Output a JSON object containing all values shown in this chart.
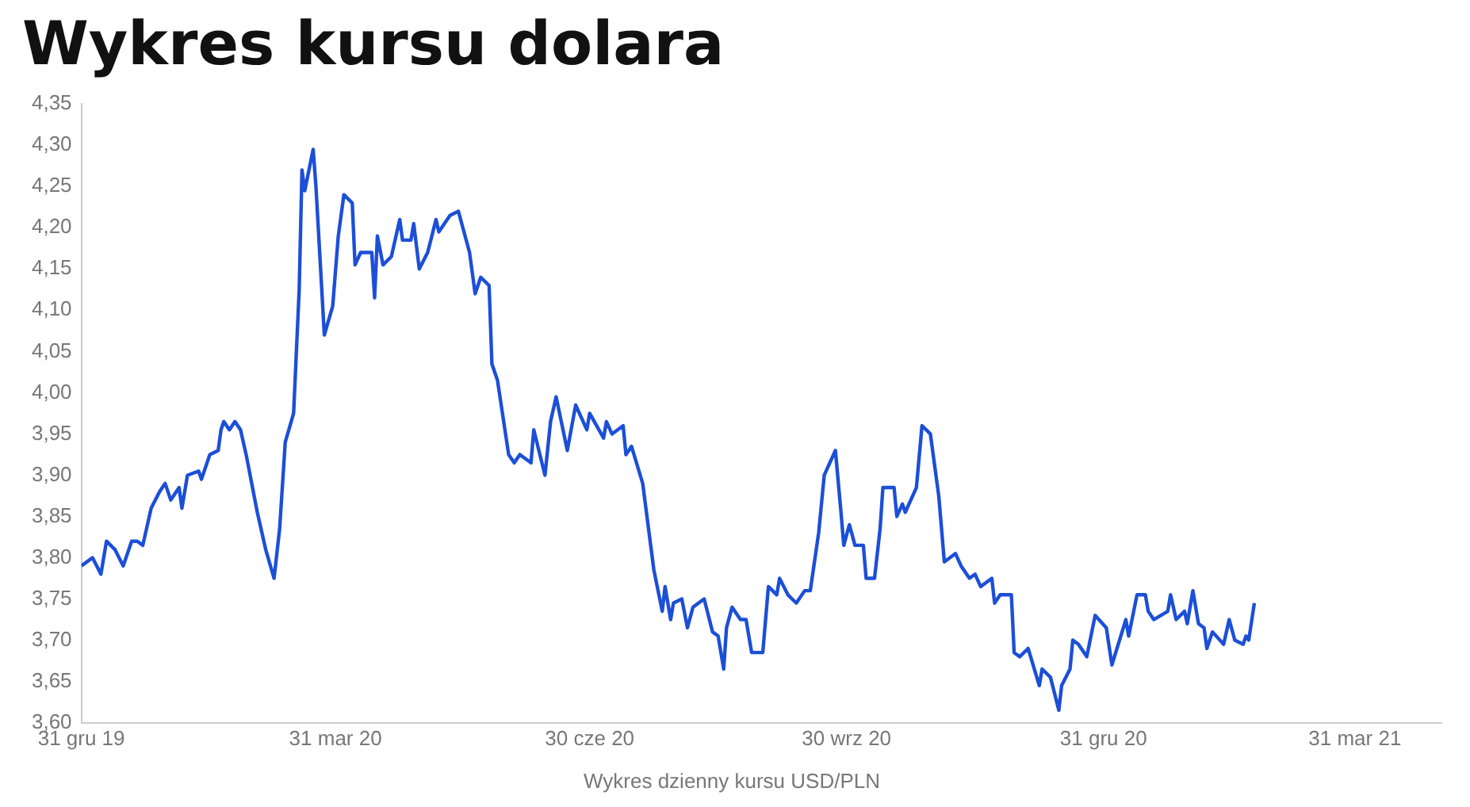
{
  "chart_data": {
    "type": "line",
    "title": "Wykres kursu dolara",
    "annotations": [
      "Wykres dzienny kursu USD/PLN"
    ],
    "x": [
      "2019-12-31",
      "2020-01-04",
      "2020-01-07",
      "2020-01-09",
      "2020-01-12",
      "2020-01-15",
      "2020-01-18",
      "2020-01-20",
      "2020-01-22",
      "2020-01-25",
      "2020-01-28",
      "2020-01-30",
      "2020-02-01",
      "2020-02-04",
      "2020-02-05",
      "2020-02-07",
      "2020-02-11",
      "2020-02-12",
      "2020-02-15",
      "2020-02-18",
      "2020-02-19",
      "2020-02-20",
      "2020-02-22",
      "2020-02-24",
      "2020-02-26",
      "2020-02-28",
      "2020-03-03",
      "2020-03-06",
      "2020-03-09",
      "2020-03-11",
      "2020-03-13",
      "2020-03-16",
      "2020-03-18",
      "2020-03-19",
      "2020-03-20",
      "2020-03-23",
      "2020-03-24",
      "2020-03-27",
      "2020-03-30",
      "2020-04-01",
      "2020-04-03",
      "2020-04-06",
      "2020-04-07",
      "2020-04-09",
      "2020-04-13",
      "2020-04-14",
      "2020-04-15",
      "2020-04-17",
      "2020-04-20",
      "2020-04-23",
      "2020-04-24",
      "2020-04-27",
      "2020-04-28",
      "2020-04-30",
      "2020-05-03",
      "2020-05-06",
      "2020-05-07",
      "2020-05-11",
      "2020-05-14",
      "2020-05-18",
      "2020-05-20",
      "2020-05-22",
      "2020-05-25",
      "2020-05-26",
      "2020-05-28",
      "2020-06-01",
      "2020-06-03",
      "2020-06-05",
      "2020-06-09",
      "2020-06-10",
      "2020-06-14",
      "2020-06-16",
      "2020-06-18",
      "2020-06-22",
      "2020-06-25",
      "2020-06-29",
      "2020-06-30",
      "2020-07-05",
      "2020-07-06",
      "2020-07-08",
      "2020-07-12",
      "2020-07-13",
      "2020-07-15",
      "2020-07-19",
      "2020-07-23",
      "2020-07-26",
      "2020-07-27",
      "2020-07-29",
      "2020-07-30",
      "2020-08-02",
      "2020-08-04",
      "2020-08-06",
      "2020-08-10",
      "2020-08-13",
      "2020-08-15",
      "2020-08-17",
      "2020-08-18",
      "2020-08-20",
      "2020-08-23",
      "2020-08-25",
      "2020-08-27",
      "2020-08-31",
      "2020-09-02",
      "2020-09-05",
      "2020-09-06",
      "2020-09-09",
      "2020-09-12",
      "2020-09-15",
      "2020-09-17",
      "2020-09-20",
      "2020-09-22",
      "2020-09-26",
      "2020-09-28",
      "2020-09-29",
      "2020-10-01",
      "2020-10-03",
      "2020-10-06",
      "2020-10-07",
      "2020-10-10",
      "2020-10-12",
      "2020-10-13",
      "2020-10-17",
      "2020-10-18",
      "2020-10-20",
      "2020-10-21",
      "2020-10-25",
      "2020-10-27",
      "2020-10-30",
      "2020-11-02",
      "2020-11-04",
      "2020-11-08",
      "2020-11-10",
      "2020-11-13",
      "2020-11-15",
      "2020-11-17",
      "2020-11-21",
      "2020-11-22",
      "2020-11-24",
      "2020-11-28",
      "2020-11-29",
      "2020-12-01",
      "2020-12-04",
      "2020-12-08",
      "2020-12-09",
      "2020-12-12",
      "2020-12-15",
      "2020-12-16",
      "2020-12-19",
      "2020-12-20",
      "2020-12-22",
      "2020-12-25",
      "2020-12-28",
      "2021-01-01",
      "2021-01-03",
      "2021-01-08",
      "2021-01-09",
      "2021-01-12",
      "2021-01-15",
      "2021-01-16",
      "2021-01-18",
      "2021-01-23",
      "2021-01-24",
      "2021-01-26",
      "2021-01-29",
      "2021-01-30",
      "2021-02-01",
      "2021-02-03",
      "2021-02-05",
      "2021-02-06",
      "2021-02-08",
      "2021-02-12",
      "2021-02-14",
      "2021-02-16",
      "2021-02-19",
      "2021-02-20",
      "2021-02-21",
      "2021-02-23"
    ],
    "series": [
      {
        "color": "#1c4fd8",
        "values": [
          3.79,
          3.8,
          3.78,
          3.82,
          3.81,
          3.79,
          3.82,
          3.82,
          3.815,
          3.86,
          3.88,
          3.89,
          3.87,
          3.885,
          3.86,
          3.9,
          3.905,
          3.895,
          3.925,
          3.93,
          3.955,
          3.965,
          3.955,
          3.965,
          3.955,
          3.925,
          3.855,
          3.81,
          3.775,
          3.835,
          3.94,
          3.975,
          4.125,
          4.27,
          4.245,
          4.295,
          4.25,
          4.07,
          4.105,
          4.19,
          4.24,
          4.23,
          4.155,
          4.17,
          4.17,
          4.115,
          4.19,
          4.155,
          4.165,
          4.21,
          4.185,
          4.185,
          4.205,
          4.15,
          4.17,
          4.21,
          4.195,
          4.215,
          4.22,
          4.17,
          4.12,
          4.14,
          4.13,
          4.035,
          4.015,
          3.925,
          3.915,
          3.925,
          3.915,
          3.955,
          3.9,
          3.965,
          3.995,
          3.93,
          3.985,
          3.955,
          3.975,
          3.945,
          3.965,
          3.95,
          3.96,
          3.925,
          3.935,
          3.89,
          3.785,
          3.735,
          3.765,
          3.725,
          3.745,
          3.75,
          3.715,
          3.74,
          3.75,
          3.71,
          3.705,
          3.665,
          3.715,
          3.74,
          3.725,
          3.725,
          3.685,
          3.685,
          3.765,
          3.755,
          3.775,
          3.755,
          3.745,
          3.76,
          3.76,
          3.83,
          3.9,
          3.93,
          3.855,
          3.815,
          3.84,
          3.815,
          3.815,
          3.775,
          3.775,
          3.835,
          3.885,
          3.885,
          3.85,
          3.865,
          3.855,
          3.885,
          3.96,
          3.95,
          3.875,
          3.795,
          3.805,
          3.79,
          3.775,
          3.78,
          3.765,
          3.775,
          3.745,
          3.755,
          3.755,
          3.685,
          3.68,
          3.69,
          3.645,
          3.665,
          3.655,
          3.615,
          3.645,
          3.665,
          3.7,
          3.695,
          3.68,
          3.73,
          3.715,
          3.67,
          3.725,
          3.705,
          3.755,
          3.755,
          3.735,
          3.725,
          3.735,
          3.755,
          3.725,
          3.735,
          3.72,
          3.76,
          3.72,
          3.715,
          3.69,
          3.71,
          3.695,
          3.725,
          3.7,
          3.695,
          3.705,
          3.7,
          3.745
        ]
      }
    ],
    "xlim": [
      "2019-12-31",
      "2021-05-01"
    ],
    "xticks": [
      {
        "value": "2019-12-31",
        "label": "31 gru 19"
      },
      {
        "value": "2020-03-31",
        "label": "31 mar 20"
      },
      {
        "value": "2020-06-30",
        "label": "30 cze 20"
      },
      {
        "value": "2020-09-30",
        "label": "30 wrz 20"
      },
      {
        "value": "2020-12-31",
        "label": "31 gru 20"
      },
      {
        "value": "2021-03-31",
        "label": "31 mar 21"
      }
    ],
    "ylim": [
      3.6,
      4.35
    ],
    "yticks": [
      {
        "value": 3.6,
        "label": "3,60"
      },
      {
        "value": 3.65,
        "label": "3,65"
      },
      {
        "value": 3.7,
        "label": "3,70"
      },
      {
        "value": 3.75,
        "label": "3,75"
      },
      {
        "value": 3.8,
        "label": "3,80"
      },
      {
        "value": 3.85,
        "label": "3,85"
      },
      {
        "value": 3.9,
        "label": "3,90"
      },
      {
        "value": 3.95,
        "label": "3,95"
      },
      {
        "value": 4.0,
        "label": "4,00"
      },
      {
        "value": 4.05,
        "label": "4,05"
      },
      {
        "value": 4.1,
        "label": "4,10"
      },
      {
        "value": 4.15,
        "label": "4,15"
      },
      {
        "value": 4.2,
        "label": "4,20"
      },
      {
        "value": 4.25,
        "label": "4,25"
      },
      {
        "value": 4.3,
        "label": "4,30"
      },
      {
        "value": 4.35,
        "label": "4,35"
      }
    ],
    "grid": false,
    "legend": false,
    "marker": "none",
    "line_style": "solid"
  }
}
